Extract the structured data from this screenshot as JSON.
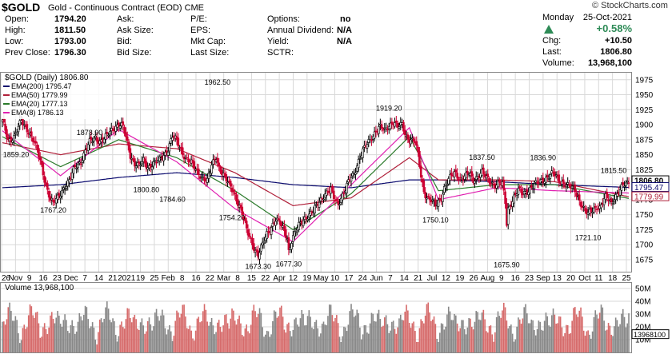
{
  "header": {
    "symbol": "$GOLD",
    "description": "Gold - Continuous Contract (EOD)",
    "exchange": "CME",
    "brand": "© StockCharts.com",
    "day": "Monday",
    "date": "25-Oct-2021",
    "change_pct": "+0.58%",
    "col1": [
      {
        "label": "Open:",
        "value": "1794.20"
      },
      {
        "label": "High:",
        "value": "1811.50"
      },
      {
        "label": "Low:",
        "value": "1793.00"
      },
      {
        "label": "Prev Close:",
        "value": "1796.30"
      }
    ],
    "col2": [
      {
        "label": "Ask:",
        "value": ""
      },
      {
        "label": "Ask Size:",
        "value": ""
      },
      {
        "label": "Bid:",
        "value": ""
      },
      {
        "label": "Bid Size:",
        "value": ""
      }
    ],
    "col3": [
      {
        "label": "P/E:",
        "value": ""
      },
      {
        "label": "EPS:",
        "value": ""
      },
      {
        "label": "Mkt Cap:",
        "value": ""
      },
      {
        "label": "Last Size:",
        "value": ""
      }
    ],
    "col4": [
      {
        "label": "Options:",
        "value": "no"
      },
      {
        "label": "Annual Dividend:",
        "value": "N/A"
      },
      {
        "label": "Yield:",
        "value": "N/A"
      },
      {
        "label": "SCTR:",
        "value": ""
      }
    ],
    "col5": [
      {
        "label": "Chg:",
        "value": "+10.50"
      },
      {
        "label": "Last:",
        "value": "1806.80"
      },
      {
        "label": "Volume:",
        "value": "13,968,100"
      }
    ]
  },
  "colors": {
    "up": "#2e8b57",
    "price_up": "#000000",
    "price_down": "#cc0033",
    "ema200": "#0a0a6e",
    "ema50": "#b0203a",
    "ema20": "#2a7a2a",
    "ema8": "#e020b0",
    "grid": "#d8d8d8",
    "vol_up": "#888888",
    "vol_down": "#d66a6a"
  },
  "chart_data": {
    "type": "candlestick",
    "title": "$GOLD (Daily) 1806.80",
    "legend": [
      {
        "name": "EMA(200)",
        "value": "1795.47",
        "color": "#0a0a6e"
      },
      {
        "name": "EMA(50)",
        "value": "1779.99",
        "color": "#b0203a"
      },
      {
        "name": "EMA(20)",
        "value": "1777.13",
        "color": "#2a7a2a"
      },
      {
        "name": "EMA(8)",
        "value": "1786.13",
        "color": "#e020b0"
      }
    ],
    "y_ticks": [
      1675,
      1700,
      1725,
      1750,
      1775,
      1800,
      1825,
      1850,
      1875,
      1900,
      1925,
      1950,
      1975
    ],
    "ylim": [
      1655,
      1988
    ],
    "x_labels": [
      "26",
      "Nov",
      "9",
      "16",
      "23",
      "Dec",
      "7",
      "14",
      "21",
      "2021",
      "19",
      "25",
      "Feb",
      "8",
      "16",
      "22",
      "Mar",
      "8",
      "15",
      "22",
      "Apr",
      "12",
      "19",
      "May",
      "10",
      "17",
      "24",
      "Jun",
      "7",
      "14",
      "21",
      "Jul",
      "12",
      "19",
      "26",
      "Aug",
      "9",
      "16",
      "23",
      "Sep",
      "13",
      "20",
      "Oct",
      "11",
      "18",
      "25"
    ],
    "right_labels": [
      {
        "text": "1806.80",
        "value": 1806.8
      },
      {
        "text": "1795.47",
        "value": 1795.47
      },
      {
        "text": "1779.99",
        "value": 1779.99
      }
    ],
    "annotations": [
      {
        "text": "1962.50",
        "value": 1962.5
      },
      {
        "text": "1859.20",
        "value": 1859.2
      },
      {
        "text": "1767.20",
        "value": 1767.2
      },
      {
        "text": "1878.90",
        "value": 1878.9
      },
      {
        "text": "1800.80",
        "value": 1800.8
      },
      {
        "text": "1784.60",
        "value": 1784.6
      },
      {
        "text": "1754.20",
        "value": 1754.2
      },
      {
        "text": "1673.30",
        "value": 1673.3
      },
      {
        "text": "1677.30",
        "value": 1677.3
      },
      {
        "text": "1919.20",
        "value": 1919.2
      },
      {
        "text": "1750.10",
        "value": 1750.1
      },
      {
        "text": "1837.50",
        "value": 1837.5
      },
      {
        "text": "1675.90",
        "value": 1675.9
      },
      {
        "text": "1836.90",
        "value": 1836.9
      },
      {
        "text": "1721.10",
        "value": 1721.1
      },
      {
        "text": "1815.50",
        "value": 1815.5
      }
    ],
    "price_path": [
      [
        0,
        1905
      ],
      [
        4,
        1875
      ],
      [
        8,
        1880
      ],
      [
        13,
        1905
      ],
      [
        18,
        1890
      ],
      [
        22,
        1870
      ],
      [
        26,
        1840
      ],
      [
        30,
        1800
      ],
      [
        33,
        1775
      ],
      [
        35,
        1768
      ],
      [
        38,
        1778
      ],
      [
        42,
        1795
      ],
      [
        46,
        1805
      ],
      [
        50,
        1830
      ],
      [
        54,
        1840
      ],
      [
        57,
        1855
      ],
      [
        60,
        1870
      ],
      [
        64,
        1880
      ],
      [
        67,
        1872
      ],
      [
        70,
        1875
      ],
      [
        73,
        1885
      ],
      [
        76,
        1895
      ],
      [
        80,
        1900
      ],
      [
        83,
        1895
      ],
      [
        86,
        1870
      ],
      [
        88,
        1850
      ],
      [
        91,
        1835
      ],
      [
        94,
        1830
      ],
      [
        97,
        1840
      ],
      [
        100,
        1830
      ],
      [
        104,
        1835
      ],
      [
        108,
        1840
      ],
      [
        111,
        1850
      ],
      [
        114,
        1860
      ],
      [
        117,
        1880
      ],
      [
        120,
        1872
      ],
      [
        123,
        1858
      ],
      [
        126,
        1845
      ],
      [
        130,
        1835
      ],
      [
        134,
        1822
      ],
      [
        138,
        1812
      ],
      [
        141,
        1805
      ],
      [
        144,
        1832
      ],
      [
        147,
        1848
      ],
      [
        149,
        1830
      ],
      [
        151,
        1820
      ],
      [
        153,
        1810
      ],
      [
        156,
        1800
      ],
      [
        159,
        1790
      ],
      [
        162,
        1770
      ],
      [
        165,
        1750
      ],
      [
        168,
        1725
      ],
      [
        171,
        1710
      ],
      [
        174,
        1690
      ],
      [
        176,
        1680
      ],
      [
        179,
        1700
      ],
      [
        182,
        1720
      ],
      [
        185,
        1730
      ],
      [
        188,
        1740
      ],
      [
        191,
        1735
      ],
      [
        194,
        1725
      ],
      [
        196,
        1712
      ],
      [
        197,
        1690
      ],
      [
        199,
        1705
      ],
      [
        202,
        1722
      ],
      [
        205,
        1738
      ],
      [
        208,
        1745
      ],
      [
        211,
        1748
      ],
      [
        214,
        1755
      ],
      [
        217,
        1770
      ],
      [
        220,
        1780
      ],
      [
        223,
        1785
      ],
      [
        226,
        1790
      ],
      [
        229,
        1775
      ],
      [
        231,
        1770
      ],
      [
        234,
        1782
      ],
      [
        236,
        1790
      ],
      [
        239,
        1810
      ],
      [
        242,
        1820
      ],
      [
        245,
        1840
      ],
      [
        248,
        1855
      ],
      [
        251,
        1868
      ],
      [
        254,
        1880
      ],
      [
        257,
        1890
      ],
      [
        260,
        1895
      ],
      [
        263,
        1890
      ],
      [
        266,
        1900
      ],
      [
        269,
        1905
      ],
      [
        272,
        1895
      ],
      [
        275,
        1900
      ],
      [
        278,
        1880
      ],
      [
        281,
        1875
      ],
      [
        284,
        1870
      ],
      [
        286,
        1850
      ],
      [
        288,
        1815
      ],
      [
        290,
        1790
      ],
      [
        292,
        1780
      ],
      [
        294,
        1775
      ],
      [
        296,
        1770
      ],
      [
        298,
        1765
      ],
      [
        300,
        1772
      ],
      [
        302,
        1780
      ],
      [
        304,
        1795
      ],
      [
        306,
        1802
      ],
      [
        309,
        1815
      ],
      [
        312,
        1820
      ],
      [
        315,
        1810
      ],
      [
        318,
        1812
      ],
      [
        321,
        1818
      ],
      [
        324,
        1808
      ],
      [
        327,
        1815
      ],
      [
        330,
        1820
      ],
      [
        333,
        1810
      ],
      [
        336,
        1805
      ],
      [
        339,
        1800
      ],
      [
        342,
        1802
      ],
      [
        344,
        1800
      ],
      [
        346,
        1770
      ],
      [
        347,
        1735
      ],
      [
        348,
        1760
      ],
      [
        350,
        1770
      ],
      [
        352,
        1780
      ],
      [
        355,
        1790
      ],
      [
        358,
        1785
      ],
      [
        361,
        1790
      ],
      [
        364,
        1796
      ],
      [
        367,
        1800
      ],
      [
        370,
        1805
      ],
      [
        373,
        1810
      ],
      [
        376,
        1815
      ],
      [
        379,
        1818
      ],
      [
        382,
        1810
      ],
      [
        385,
        1805
      ],
      [
        388,
        1800
      ],
      [
        391,
        1795
      ],
      [
        394,
        1790
      ],
      [
        397,
        1775
      ],
      [
        399,
        1765
      ],
      [
        401,
        1755
      ],
      [
        403,
        1750
      ],
      [
        405,
        1755
      ],
      [
        407,
        1760
      ],
      [
        409,
        1765
      ],
      [
        411,
        1762
      ],
      [
        413,
        1770
      ],
      [
        415,
        1778
      ],
      [
        417,
        1775
      ],
      [
        419,
        1770
      ],
      [
        421,
        1780
      ],
      [
        423,
        1785
      ],
      [
        425,
        1790
      ],
      [
        427,
        1798
      ],
      [
        429,
        1800
      ],
      [
        431,
        1806.8
      ]
    ],
    "ema200": [
      [
        0,
        1795
      ],
      [
        40,
        1800
      ],
      [
        80,
        1812
      ],
      [
        120,
        1820
      ],
      [
        160,
        1812
      ],
      [
        200,
        1800
      ],
      [
        240,
        1795
      ],
      [
        280,
        1808
      ],
      [
        300,
        1808
      ],
      [
        340,
        1805
      ],
      [
        380,
        1800
      ],
      [
        431,
        1795.47
      ]
    ],
    "ema50": [
      [
        0,
        1870
      ],
      [
        40,
        1850
      ],
      [
        80,
        1868
      ],
      [
        120,
        1860
      ],
      [
        160,
        1820
      ],
      [
        200,
        1765
      ],
      [
        240,
        1778
      ],
      [
        280,
        1845
      ],
      [
        300,
        1808
      ],
      [
        340,
        1808
      ],
      [
        380,
        1805
      ],
      [
        431,
        1779.99
      ]
    ],
    "ema20": [
      [
        0,
        1880
      ],
      [
        40,
        1830
      ],
      [
        80,
        1875
      ],
      [
        120,
        1845
      ],
      [
        160,
        1790
      ],
      [
        200,
        1725
      ],
      [
        240,
        1785
      ],
      [
        280,
        1880
      ],
      [
        300,
        1790
      ],
      [
        340,
        1800
      ],
      [
        380,
        1800
      ],
      [
        431,
        1777.13
      ]
    ],
    "ema8": [
      [
        0,
        1890
      ],
      [
        40,
        1815
      ],
      [
        80,
        1892
      ],
      [
        120,
        1838
      ],
      [
        160,
        1760
      ],
      [
        200,
        1705
      ],
      [
        240,
        1800
      ],
      [
        280,
        1895
      ],
      [
        300,
        1775
      ],
      [
        340,
        1795
      ],
      [
        380,
        1790
      ],
      [
        431,
        1786.13
      ]
    ],
    "volume": {
      "label": "Volume 13,968,100",
      "y_ticks": [
        "50M",
        "40M",
        "30M",
        "20M",
        "10M"
      ],
      "right_label": "13968100",
      "ylim_millions": [
        0,
        55
      ],
      "last_value_millions": 13.97
    }
  }
}
